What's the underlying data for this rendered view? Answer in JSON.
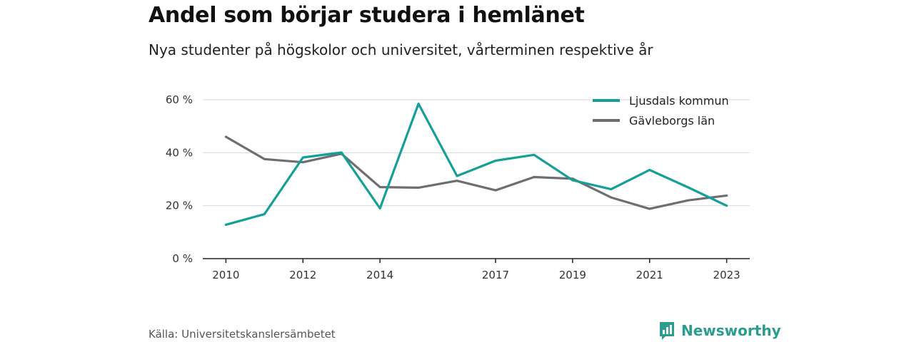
{
  "header": {
    "title": "Andel som börjar studera i hemlänet",
    "subtitle": "Nya studenter på högskolor och universitet, vårterminen respektive år"
  },
  "footer": {
    "source": "Källa: Universitetskanslersämbetet",
    "brand": "Newsworthy",
    "brand_icon": "bar-chart-bubble-icon",
    "brand_color": "#2a9d8f"
  },
  "chart_data": {
    "type": "line",
    "x": [
      2010,
      2011,
      2012,
      2013,
      2014,
      2015,
      2016,
      2017,
      2018,
      2019,
      2020,
      2021,
      2022,
      2023
    ],
    "x_tick_values": [
      2010,
      2012,
      2014,
      2017,
      2019,
      2021,
      2023
    ],
    "x_tick_labels": [
      "2010",
      "2012",
      "2014",
      "2017",
      "2019",
      "2021",
      "2023"
    ],
    "xlim": [
      2009.4,
      2023.6
    ],
    "ylim": [
      0,
      60
    ],
    "y_tick_values": [
      0,
      20,
      40,
      60
    ],
    "y_tick_labels": [
      "0 %",
      "20 %",
      "40 %",
      "60 %"
    ],
    "grid": true,
    "legend_position": "top-right",
    "series": [
      {
        "name": "Ljusdals kommun",
        "color": "#14a098",
        "values": [
          12.8,
          16.8,
          38.2,
          40.1,
          19.0,
          58.5,
          31.2,
          37.0,
          39.2,
          29.6,
          26.2,
          33.5,
          26.9,
          20.0
        ]
      },
      {
        "name": "Gävleborgs län",
        "color": "#6e6d72",
        "values": [
          46.0,
          37.6,
          36.4,
          39.6,
          27.0,
          26.8,
          29.4,
          25.8,
          30.8,
          30.2,
          23.1,
          18.8,
          22.0,
          23.8
        ]
      }
    ]
  }
}
